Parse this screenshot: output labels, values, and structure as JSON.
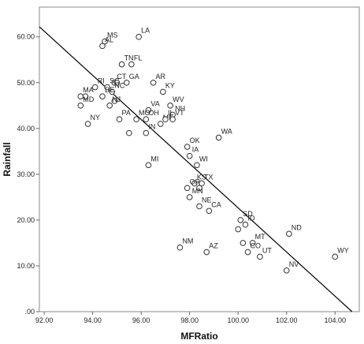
{
  "chart_data": {
    "type": "scatter",
    "xlabel": "MFRatio",
    "ylabel": "Rainfall",
    "xlim": [
      91.8,
      105.0
    ],
    "ylim": [
      0,
      66.5
    ],
    "x_ticks": [
      92,
      94,
      96,
      98,
      100,
      102,
      104
    ],
    "x_tick_labels": [
      "92.00",
      "94.00",
      "96.00",
      "98.00",
      "100.00",
      "102.00",
      "104.00"
    ],
    "y_ticks": [
      0,
      10,
      20,
      30,
      40,
      50,
      60
    ],
    "y_tick_labels": [
      ".00",
      "10.00",
      "20.00",
      "30.00",
      "40.00",
      "50.00",
      "60.00"
    ],
    "grid": false,
    "fit_line": {
      "x": [
        91.8,
        104.7
      ],
      "y": [
        62.2,
        0
      ]
    },
    "points": [
      {
        "label": "LA",
        "x": 95.9,
        "y": 60
      },
      {
        "label": "MS",
        "x": 94.5,
        "y": 59
      },
      {
        "label": "AL",
        "x": 94.4,
        "y": 58
      },
      {
        "label": "TN",
        "x": 95.2,
        "y": 54
      },
      {
        "label": "FL",
        "x": 95.6,
        "y": 54
      },
      {
        "label": "CT",
        "x": 94.9,
        "y": 50
      },
      {
        "label": "GA",
        "x": 95.4,
        "y": 50
      },
      {
        "label": "AR",
        "x": 96.5,
        "y": 50
      },
      {
        "label": "",
        "x": 95.0,
        "y": 50
      },
      {
        "label": "RI",
        "x": 94.1,
        "y": 49
      },
      {
        "label": "SC",
        "x": 94.6,
        "y": 49
      },
      {
        "label": "NC",
        "x": 94.8,
        "y": 48
      },
      {
        "label": "KY",
        "x": 96.9,
        "y": 48
      },
      {
        "label": "MA",
        "x": 93.5,
        "y": 47
      },
      {
        "label": "",
        "x": 93.7,
        "y": 47
      },
      {
        "label": "DE",
        "x": 94.4,
        "y": 47
      },
      {
        "label": "",
        "x": 94.9,
        "y": 46
      },
      {
        "label": "NJ",
        "x": 94.7,
        "y": 45
      },
      {
        "label": "MD",
        "x": 93.5,
        "y": 45
      },
      {
        "label": "WV",
        "x": 97.2,
        "y": 45
      },
      {
        "label": "VA",
        "x": 96.3,
        "y": 44
      },
      {
        "label": "NH",
        "x": 97.3,
        "y": 43
      },
      {
        "label": "NY",
        "x": 93.8,
        "y": 41
      },
      {
        "label": "PA",
        "x": 95.1,
        "y": 42
      },
      {
        "label": "MO",
        "x": 95.8,
        "y": 42
      },
      {
        "label": "OH",
        "x": 96.2,
        "y": 42
      },
      {
        "label": "ME",
        "x": 96.8,
        "y": 41
      },
      {
        "label": "IL",
        "x": 97.0,
        "y": 42
      },
      {
        "label": "VT",
        "x": 97.3,
        "y": 42
      },
      {
        "label": "IN",
        "x": 96.2,
        "y": 39
      },
      {
        "label": "",
        "x": 95.5,
        "y": 39
      },
      {
        "label": "WA",
        "x": 99.2,
        "y": 38
      },
      {
        "label": "OK",
        "x": 97.9,
        "y": 36
      },
      {
        "label": "IA",
        "x": 98.0,
        "y": 34
      },
      {
        "label": "WI",
        "x": 98.3,
        "y": 32
      },
      {
        "label": "MI",
        "x": 96.3,
        "y": 32
      },
      {
        "label": "KS",
        "x": 98.2,
        "y": 28
      },
      {
        "label": "TX",
        "x": 98.5,
        "y": 28
      },
      {
        "label": "OR",
        "x": 97.9,
        "y": 27
      },
      {
        "label": "",
        "x": 98.4,
        "y": 27
      },
      {
        "label": "MN",
        "x": 98.0,
        "y": 25
      },
      {
        "label": "CA",
        "x": 98.8,
        "y": 22
      },
      {
        "label": "NE",
        "x": 98.4,
        "y": 23
      },
      {
        "label": "SD",
        "x": 100.1,
        "y": 20
      },
      {
        "label": "ID",
        "x": 100.3,
        "y": 19
      },
      {
        "label": "",
        "x": 100.0,
        "y": 18
      },
      {
        "label": "ND",
        "x": 102.1,
        "y": 17
      },
      {
        "label": "MT",
        "x": 100.6,
        "y": 15
      },
      {
        "label": "",
        "x": 100.2,
        "y": 15
      },
      {
        "label": "CO",
        "x": 100.4,
        "y": 13
      },
      {
        "label": "UT",
        "x": 100.9,
        "y": 12
      },
      {
        "label": "NM",
        "x": 97.6,
        "y": 14
      },
      {
        "label": "AZ",
        "x": 98.7,
        "y": 13
      },
      {
        "label": "WY",
        "x": 104.0,
        "y": 12
      },
      {
        "label": "NV",
        "x": 102.0,
        "y": 9
      }
    ]
  }
}
